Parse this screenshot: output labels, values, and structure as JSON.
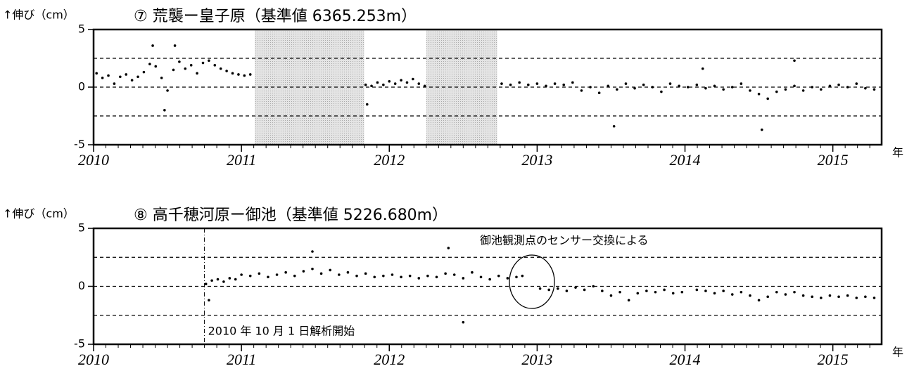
{
  "chart_data": [
    {
      "type": "scatter",
      "title": "⑦ 荒襲ー皇子原（基準値 6365.253m）",
      "y_label": "↑伸び（cm）",
      "x_unit": "年",
      "color": "#000000",
      "xlim": [
        2010,
        2015.33
      ],
      "xticks": [
        2010,
        2011,
        2012,
        2013,
        2014,
        2015
      ],
      "ylim": [
        -5,
        5
      ],
      "yticks": [
        -5,
        0,
        5
      ],
      "ref_lines": [
        -2.5,
        0,
        2.5
      ],
      "shaded": [
        [
          2011.09,
          2011.83
        ],
        [
          2012.25,
          2012.73
        ]
      ],
      "x": [
        2010.02,
        2010.06,
        2010.1,
        2010.14,
        2010.18,
        2010.22,
        2010.26,
        2010.3,
        2010.34,
        2010.38,
        2010.42,
        2010.46,
        2010.5,
        2010.54,
        2010.58,
        2010.62,
        2010.66,
        2010.7,
        2010.74,
        2010.78,
        2010.82,
        2010.86,
        2010.9,
        2010.94,
        2010.98,
        2011.02,
        2011.06,
        2010.4,
        2010.55,
        2010.48,
        2011.84,
        2011.88,
        2011.92,
        2011.96,
        2012.0,
        2012.04,
        2012.08,
        2012.12,
        2012.16,
        2012.2,
        2012.24,
        2011.85,
        2012.76,
        2012.82,
        2012.88,
        2012.94,
        2013.0,
        2013.06,
        2013.12,
        2013.18,
        2013.24,
        2013.3,
        2013.36,
        2013.42,
        2013.48,
        2013.54,
        2013.6,
        2013.66,
        2013.72,
        2013.78,
        2013.84,
        2013.9,
        2013.96,
        2014.02,
        2014.08,
        2014.14,
        2014.2,
        2014.26,
        2014.32,
        2014.38,
        2014.44,
        2014.5,
        2014.56,
        2014.62,
        2014.68,
        2014.74,
        2014.8,
        2014.86,
        2014.92,
        2014.98,
        2015.04,
        2015.1,
        2015.16,
        2015.22,
        2015.28,
        2013.52,
        2014.52,
        2014.74,
        2014.12
      ],
      "values": [
        1.2,
        0.8,
        1.0,
        0.3,
        0.9,
        1.1,
        0.6,
        0.9,
        1.3,
        2.0,
        1.8,
        0.8,
        -0.3,
        1.5,
        2.2,
        1.6,
        1.9,
        1.2,
        2.1,
        2.3,
        1.9,
        1.6,
        1.4,
        1.2,
        1.1,
        1.0,
        1.1,
        3.6,
        3.6,
        -2.0,
        0.2,
        0.1,
        0.4,
        0.2,
        0.5,
        0.3,
        0.6,
        0.4,
        0.7,
        0.3,
        0.1,
        -1.5,
        0.3,
        0.2,
        0.4,
        0.2,
        0.3,
        0.1,
        0.3,
        0.2,
        0.4,
        -0.3,
        0.0,
        -0.5,
        0.1,
        -0.2,
        0.3,
        -0.1,
        0.2,
        0.0,
        -0.4,
        0.3,
        0.1,
        0.0,
        0.2,
        -0.1,
        0.1,
        -0.2,
        0.0,
        0.3,
        -0.3,
        -0.6,
        -1.0,
        -0.4,
        -0.2,
        0.1,
        -0.3,
        0.0,
        -0.2,
        0.1,
        0.2,
        0.0,
        0.3,
        -0.1,
        -0.2,
        -3.4,
        -3.7,
        2.3,
        1.6
      ]
    },
    {
      "type": "scatter",
      "title": "⑧ 高千穂河原ー御池（基準値 5226.680m）",
      "y_label": "↑伸び（cm）",
      "x_unit": "年",
      "color": "#000000",
      "xlim": [
        2010,
        2015.33
      ],
      "xticks": [
        2010,
        2011,
        2012,
        2013,
        2014,
        2015
      ],
      "ylim": [
        -5,
        5
      ],
      "yticks": [
        -5,
        0,
        5
      ],
      "ref_lines": [
        -2.5,
        0,
        2.5
      ],
      "start_line": 2010.75,
      "start_annotation": "2010 年 10 月 1 日解析開始",
      "annotation": "御池観測点のセンサー交換による",
      "x": [
        2010.76,
        2010.8,
        2010.84,
        2010.88,
        2010.92,
        2010.96,
        2011.0,
        2011.06,
        2011.12,
        2011.18,
        2011.24,
        2011.3,
        2011.36,
        2011.42,
        2011.48,
        2011.54,
        2011.6,
        2011.66,
        2011.72,
        2011.78,
        2011.84,
        2011.9,
        2011.96,
        2012.02,
        2012.08,
        2012.14,
        2012.2,
        2012.26,
        2012.32,
        2012.38,
        2012.44,
        2012.5,
        2012.56,
        2012.62,
        2012.68,
        2012.74,
        2012.8,
        2012.86,
        2012.9,
        2011.48,
        2012.4,
        2012.5,
        2010.78,
        2013.02,
        2013.08,
        2013.14,
        2013.2,
        2013.26,
        2013.32,
        2013.38,
        2013.44,
        2013.5,
        2013.56,
        2013.62,
        2013.68,
        2013.74,
        2013.8,
        2013.86,
        2013.92,
        2013.98,
        2014.08,
        2014.14,
        2014.2,
        2014.26,
        2014.32,
        2014.38,
        2014.44,
        2014.5,
        2014.56,
        2014.62,
        2014.68,
        2014.74,
        2014.8,
        2014.86,
        2014.92,
        2014.98,
        2015.04,
        2015.1,
        2015.16,
        2015.22,
        2015.28
      ],
      "values": [
        0.2,
        0.5,
        0.6,
        0.4,
        0.7,
        0.6,
        1.0,
        0.9,
        1.1,
        0.8,
        1.0,
        1.2,
        0.9,
        1.3,
        1.5,
        1.1,
        1.4,
        1.0,
        1.2,
        0.9,
        1.1,
        0.8,
        0.9,
        1.0,
        0.8,
        0.9,
        0.7,
        0.9,
        0.8,
        1.1,
        1.0,
        0.7,
        1.2,
        0.8,
        0.6,
        0.9,
        0.7,
        0.8,
        0.9,
        3.0,
        3.3,
        -3.1,
        -1.2,
        -0.2,
        -0.3,
        -0.2,
        -0.4,
        -0.1,
        -0.3,
        0.0,
        -0.4,
        -0.8,
        -0.5,
        -1.2,
        -0.6,
        -0.4,
        -0.5,
        -0.3,
        -0.6,
        -0.5,
        -0.3,
        -0.4,
        -0.6,
        -0.4,
        -0.7,
        -0.5,
        -0.8,
        -1.2,
        -0.9,
        -0.5,
        -0.7,
        -0.5,
        -0.8,
        -0.9,
        -1.0,
        -0.8,
        -0.9,
        -0.8,
        -1.0,
        -0.9,
        -1.0
      ]
    }
  ]
}
